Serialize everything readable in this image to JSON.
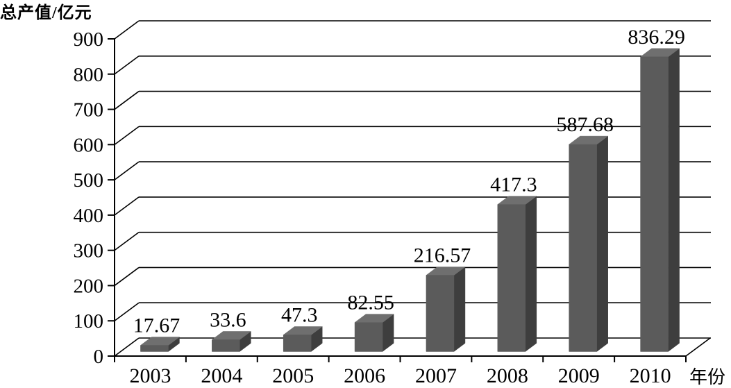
{
  "chart_data": {
    "type": "bar",
    "style": "3d-perspective",
    "title": "总产值/亿元",
    "xlabel": "年份",
    "ylabel": "",
    "categories": [
      "2003",
      "2004",
      "2005",
      "2006",
      "2007",
      "2008",
      "2009",
      "2010"
    ],
    "values": [
      17.67,
      33.6,
      47.3,
      82.55,
      216.57,
      417.3,
      587.68,
      836.29
    ],
    "value_labels": [
      "17.67",
      "33.6",
      "47.3",
      "82.55",
      "216.57",
      "417.3",
      "587.68",
      "836.29"
    ],
    "y_ticks": [
      0,
      100,
      200,
      300,
      400,
      500,
      600,
      700,
      800,
      900
    ],
    "ylim": [
      0,
      900
    ],
    "grid": true,
    "legend": false,
    "colors": {
      "bar_front": "#5b5b5b",
      "bar_top": "#6f6f6f",
      "bar_side": "#3e3e3e",
      "line": "#000000",
      "text": "#000000",
      "background": "#ffffff"
    }
  }
}
